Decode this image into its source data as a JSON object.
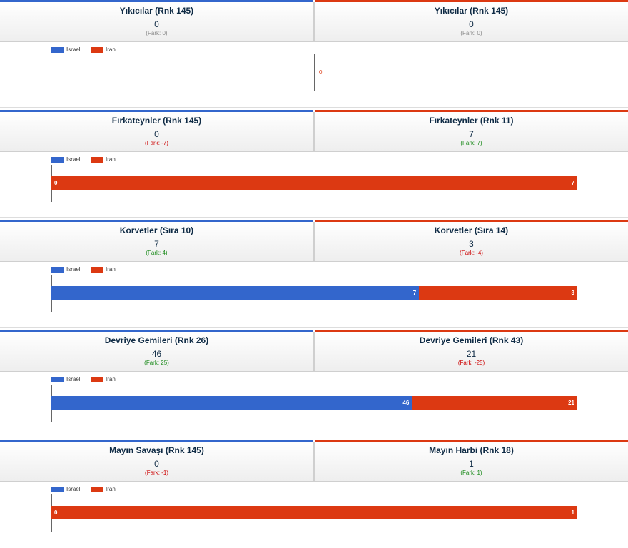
{
  "colors": {
    "israel": "#3366cc",
    "iran": "#dc3912"
  },
  "legend": {
    "israel": "Israel",
    "iran": "Iran"
  },
  "sections": [
    {
      "left": {
        "title": "Yıkıcılar (Rnk 145)",
        "value": "0",
        "diff": "(Fark: 0)",
        "diff_type": "neutral"
      },
      "right": {
        "title": "Yıkıcılar (Rnk 145)",
        "value": "0",
        "diff": "(Fark: 0)",
        "diff_type": "neutral"
      }
    },
    {
      "left": {
        "title": "Fırkateynler (Rnk 145)",
        "value": "0",
        "diff": "(Fark: -7)",
        "diff_type": "neg"
      },
      "right": {
        "title": "Fırkateynler (Rnk 11)",
        "value": "7",
        "diff": "(Fark: 7)",
        "diff_type": "pos"
      }
    },
    {
      "left": {
        "title": "Korvetler (Sıra 10)",
        "value": "7",
        "diff": "(Fark: 4)",
        "diff_type": "pos"
      },
      "right": {
        "title": "Korvetler (Sıra 14)",
        "value": "3",
        "diff": "(Fark: -4)",
        "diff_type": "neg"
      }
    },
    {
      "left": {
        "title": "Devriye Gemileri (Rnk 26)",
        "value": "46",
        "diff": "(Fark: 25)",
        "diff_type": "pos"
      },
      "right": {
        "title": "Devriye Gemileri (Rnk 43)",
        "value": "21",
        "diff": "(Fark: -25)",
        "diff_type": "neg"
      }
    },
    {
      "left": {
        "title": "Mayın Savaşı (Rnk 145)",
        "value": "0",
        "diff": "(Fark: -1)",
        "diff_type": "neg"
      },
      "right": {
        "title": "Mayın Harbi (Rnk 18)",
        "value": "1",
        "diff": "(Fark: 1)",
        "diff_type": "pos"
      }
    }
  ],
  "chart_data": [
    {
      "type": "bar",
      "stacked": true,
      "orientation": "horizontal",
      "series": [
        {
          "name": "Israel",
          "values": [
            0
          ]
        },
        {
          "name": "Iran",
          "values": [
            0
          ]
        }
      ],
      "legend": "top-left"
    },
    {
      "type": "bar",
      "stacked": true,
      "orientation": "horizontal",
      "series": [
        {
          "name": "Israel",
          "values": [
            0
          ]
        },
        {
          "name": "Iran",
          "values": [
            7
          ]
        }
      ],
      "legend": "top-left"
    },
    {
      "type": "bar",
      "stacked": true,
      "orientation": "horizontal",
      "series": [
        {
          "name": "Israel",
          "values": [
            7
          ]
        },
        {
          "name": "Iran",
          "values": [
            3
          ]
        }
      ],
      "legend": "top-left"
    },
    {
      "type": "bar",
      "stacked": true,
      "orientation": "horizontal",
      "series": [
        {
          "name": "Israel",
          "values": [
            46
          ]
        },
        {
          "name": "Iran",
          "values": [
            21
          ]
        }
      ],
      "legend": "top-left"
    },
    {
      "type": "bar",
      "stacked": true,
      "orientation": "horizontal",
      "series": [
        {
          "name": "Israel",
          "values": [
            0
          ]
        },
        {
          "name": "Iran",
          "values": [
            1
          ]
        }
      ],
      "legend": "top-left"
    }
  ]
}
